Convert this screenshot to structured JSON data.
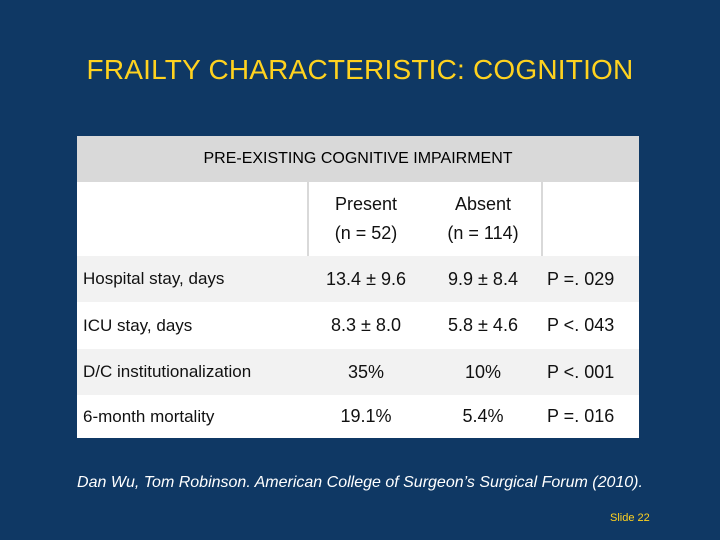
{
  "slide": {
    "title": "FRAILTY CHARACTERISTIC: COGNITION",
    "citation": "Dan Wu, Tom Robinson. American College of Surgeon’s Surgical Forum (2010).",
    "slide_number": "Slide 22"
  },
  "table": {
    "header": "PRE-EXISTING COGNITIVE IMPAIRMENT",
    "columns": {
      "present": {
        "label": "Present",
        "n": "(n = 52)"
      },
      "absent": {
        "label": "Absent",
        "n": "(n = 114)"
      }
    },
    "rows": [
      {
        "label": "Hospital stay, days",
        "present": "13.4 ± 9.6",
        "absent": "9.9 ± 8.4",
        "p": "P =. 029"
      },
      {
        "label": "ICU stay, days",
        "present": "8.3 ± 8.0",
        "absent": "5.8 ± 4.6",
        "p": "P <. 043"
      },
      {
        "label": "D/C institutionalization",
        "present": "35%",
        "absent": "10%",
        "p": "P <. 001"
      },
      {
        "label": "6-month mortality",
        "present": "19.1%",
        "absent": "5.4%",
        "p": "P =. 016"
      }
    ]
  }
}
